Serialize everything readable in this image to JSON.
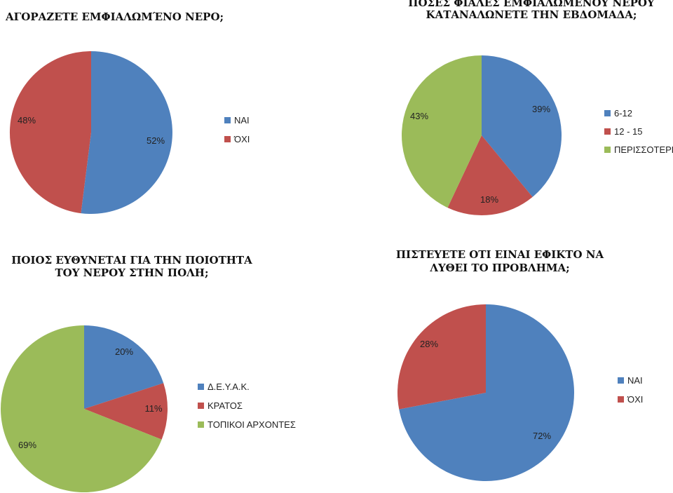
{
  "colors": {
    "blue": "#4F81BD",
    "red": "#C0504D",
    "green": "#9BBB59"
  },
  "chart_data": [
    {
      "type": "pie",
      "title": [
        "ΑΓΟΡΑΖΕΤΕ ΕΜΦΙΑΛΩΜΈΝΟ ΝΕΡΟ;"
      ],
      "legend_position": "right",
      "categories": [
        "ΝΑΙ",
        "ΌΧΙ"
      ],
      "values": [
        52,
        48
      ],
      "labels": [
        "52%",
        "48%"
      ]
    },
    {
      "type": "pie",
      "title": [
        "ΠΟΣΕΣ ΦΙΑΛΕΣ ΕΜΦΙΑΛΩΜΕΝΟΥ ΝΕΡΟΥ",
        "ΚΑΤΑΝΑΛΩΝΕΤΕ ΤΗΝ ΕΒΔΟΜΑΔΑ;"
      ],
      "legend_position": "right",
      "categories": [
        "6-12",
        "12 - 15",
        "ΠΕΡΙΣΣΟΤΕΡΕΣ"
      ],
      "values": [
        39,
        18,
        43
      ],
      "labels": [
        "39%",
        "18%",
        "43%"
      ]
    },
    {
      "type": "pie",
      "title": [
        "ΠΟΙΟΣ ΕΥΘΥΝΕΤΑΙ ΓΙΑ ΤΗΝ ΠΟΙΟΤΗΤΑ",
        "ΤΟΥ ΝΕΡΟΥ ΣΤΗΝ ΠΟΛΗ;"
      ],
      "legend_position": "right",
      "categories": [
        "Δ.Ε.Υ.Α.Κ.",
        "ΚΡΑΤΟΣ",
        "ΤΟΠΙΚΟΙ ΑΡΧΟΝΤΕΣ"
      ],
      "values": [
        20,
        11,
        69
      ],
      "labels": [
        "20%",
        "11%",
        "69%"
      ]
    },
    {
      "type": "pie",
      "title": [
        "ΠΙΣΤΕΥΕΤΕ ΟΤΙ ΕΙΝΑΙ ΕΦΙΚΤΟ ΝΑ",
        "ΛΥΘΕΙ ΤΟ ΠΡΟΒΛΗΜΑ;"
      ],
      "legend_position": "right",
      "categories": [
        "ΝΑΙ",
        "ΌΧΙ"
      ],
      "values": [
        72,
        28
      ],
      "labels": [
        "72%",
        "28%"
      ]
    }
  ]
}
